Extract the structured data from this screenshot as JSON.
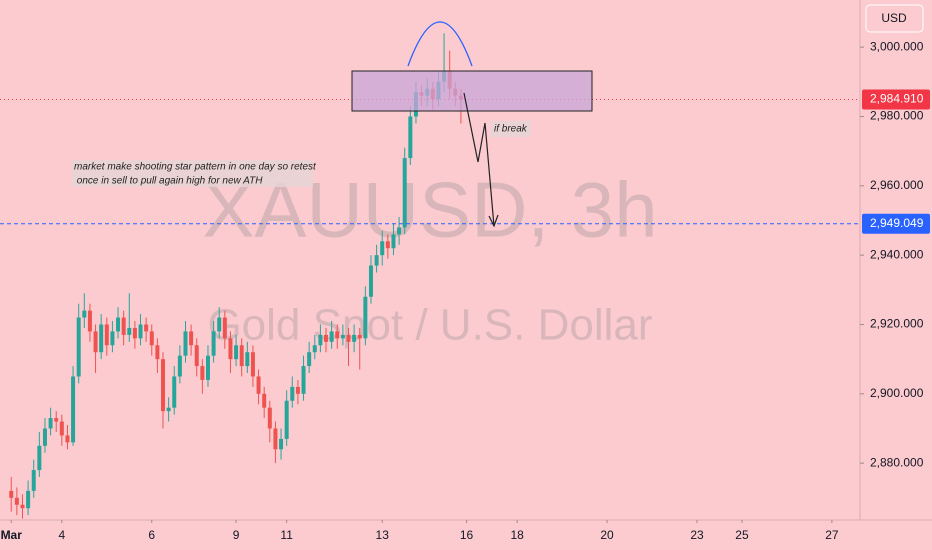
{
  "chart_data": {
    "type": "candlestick",
    "symbol": "XAUUSD, 3h",
    "description": "Gold Spot / U.S. Dollar",
    "currency": "USD",
    "up_color": "#26a69a",
    "down_color": "#ef5350",
    "x": [
      0,
      1,
      2,
      3,
      4,
      5,
      6,
      7,
      8,
      9,
      10,
      11,
      12,
      13,
      14,
      15,
      16,
      17,
      18,
      19,
      20,
      21,
      22,
      23,
      24,
      25,
      26,
      27,
      28,
      29,
      30,
      31,
      32,
      33,
      34,
      35,
      36,
      37,
      38,
      39,
      40,
      41,
      42,
      43,
      44,
      45,
      46,
      47,
      48,
      49,
      50,
      51,
      52,
      53,
      54,
      55,
      56,
      57,
      58,
      59,
      60,
      61,
      62,
      63,
      64,
      65,
      66,
      67,
      68,
      69,
      70,
      71,
      72,
      73,
      74,
      75,
      76,
      77,
      78,
      79,
      80
    ],
    "open": [
      2872,
      2870,
      2868,
      2867,
      2872,
      2878,
      2885,
      2890,
      2893,
      2892,
      2888,
      2886,
      2905,
      2922,
      2924,
      2918,
      2912,
      2920,
      2914,
      2918,
      2922,
      2917,
      2919,
      2916,
      2920,
      2918,
      2914,
      2910,
      2895,
      2896,
      2905,
      2911,
      2918,
      2914,
      2908,
      2904,
      2911,
      2918,
      2922,
      2916,
      2910,
      2914,
      2908,
      2912,
      2905,
      2900,
      2896,
      2890,
      2884,
      2887,
      2898,
      2902,
      2900,
      2908,
      2912,
      2914,
      2917,
      2915,
      2918,
      2916,
      2917,
      2915,
      2917,
      2916,
      2928,
      2937,
      2940,
      2944,
      2942,
      2946,
      2948,
      2968,
      2980,
      2987,
      2986,
      2988,
      2985,
      2990,
      2993,
      2988,
      2986
    ],
    "high": [
      2876,
      2873,
      2871,
      2875,
      2881,
      2889,
      2893,
      2896,
      2895,
      2894,
      2891,
      2908,
      2926,
      2929,
      2926,
      2920,
      2923,
      2922,
      2921,
      2925,
      2924,
      2929,
      2921,
      2923,
      2922,
      2920,
      2916,
      2912,
      2899,
      2908,
      2914,
      2921,
      2920,
      2916,
      2910,
      2914,
      2921,
      2925,
      2924,
      2918,
      2917,
      2916,
      2915,
      2914,
      2907,
      2902,
      2898,
      2892,
      2890,
      2901,
      2905,
      2904,
      2911,
      2915,
      2917,
      2920,
      2919,
      2921,
      2920,
      2920,
      2919,
      2920,
      2919,
      2931,
      2940,
      2943,
      2947,
      2946,
      2949,
      2951,
      2971,
      2983,
      2990,
      2989,
      2991,
      2990,
      2993,
      3004,
      2999,
      2990,
      2988
    ],
    "low": [
      2866,
      2865,
      2864,
      2865,
      2870,
      2876,
      2883,
      2888,
      2889,
      2885,
      2884,
      2885,
      2903,
      2919,
      2915,
      2906,
      2910,
      2911,
      2912,
      2916,
      2914,
      2915,
      2913,
      2914,
      2915,
      2911,
      2906,
      2890,
      2892,
      2894,
      2903,
      2909,
      2911,
      2905,
      2900,
      2902,
      2909,
      2916,
      2913,
      2906,
      2908,
      2905,
      2906,
      2902,
      2897,
      2893,
      2886,
      2880,
      2881,
      2885,
      2896,
      2897,
      2898,
      2906,
      2910,
      2912,
      2912,
      2913,
      2913,
      2914,
      2908,
      2912,
      2907,
      2914,
      2926,
      2935,
      2937,
      2939,
      2940,
      2943,
      2946,
      2966,
      2978,
      2983,
      2983,
      2982,
      2983,
      2987,
      2985,
      2983,
      2978
    ],
    "close": [
      2870,
      2868,
      2867,
      2872,
      2878,
      2885,
      2890,
      2893,
      2892,
      2888,
      2886,
      2905,
      2922,
      2924,
      2918,
      2912,
      2920,
      2914,
      2918,
      2922,
      2917,
      2919,
      2916,
      2920,
      2918,
      2914,
      2910,
      2895,
      2896,
      2905,
      2911,
      2918,
      2914,
      2908,
      2904,
      2911,
      2918,
      2922,
      2916,
      2910,
      2914,
      2908,
      2912,
      2905,
      2900,
      2896,
      2890,
      2884,
      2887,
      2898,
      2902,
      2900,
      2908,
      2912,
      2914,
      2917,
      2915,
      2918,
      2916,
      2917,
      2915,
      2917,
      2916,
      2928,
      2937,
      2940,
      2944,
      2942,
      2946,
      2948,
      2968,
      2980,
      2987,
      2986,
      2988,
      2985,
      2990,
      2993,
      2988,
      2986,
      2984.91
    ],
    "xlim": [
      -2,
      151
    ],
    "xticks": [
      {
        "value": 0,
        "label": "Mar"
      },
      {
        "value": 9,
        "label": "4"
      },
      {
        "value": 25,
        "label": "6"
      },
      {
        "value": 40,
        "label": "9"
      },
      {
        "value": 49,
        "label": "11"
      },
      {
        "value": 66,
        "label": "13"
      },
      {
        "value": 81,
        "label": "16"
      },
      {
        "value": 90,
        "label": "18"
      },
      {
        "value": 106,
        "label": "20"
      },
      {
        "value": 122,
        "label": "23"
      },
      {
        "value": 130,
        "label": "25"
      },
      {
        "value": 146,
        "label": "27"
      }
    ],
    "ylim": [
      2863.6,
      3013.6
    ],
    "yticks": [
      {
        "value": 2880,
        "label": "2,880.000"
      },
      {
        "value": 2900,
        "label": "2,900.000"
      },
      {
        "value": 2920,
        "label": "2,920.000"
      },
      {
        "value": 2940,
        "label": "2,940.000"
      },
      {
        "value": 2960,
        "label": "2,960.000"
      },
      {
        "value": 2980,
        "label": "2,980.000"
      },
      {
        "value": 3000,
        "label": "3,000.000"
      }
    ],
    "price_lines": [
      {
        "value": 2984.91,
        "label": "2,984.910",
        "color": "#f23645"
      },
      {
        "value": 2949.049,
        "label": "2,949.049",
        "color": "#2962ff"
      }
    ],
    "annotations": [
      "market make shooting star pattern in one day so retest",
      " once in sell to pull again high for new ATH",
      "if break"
    ]
  }
}
